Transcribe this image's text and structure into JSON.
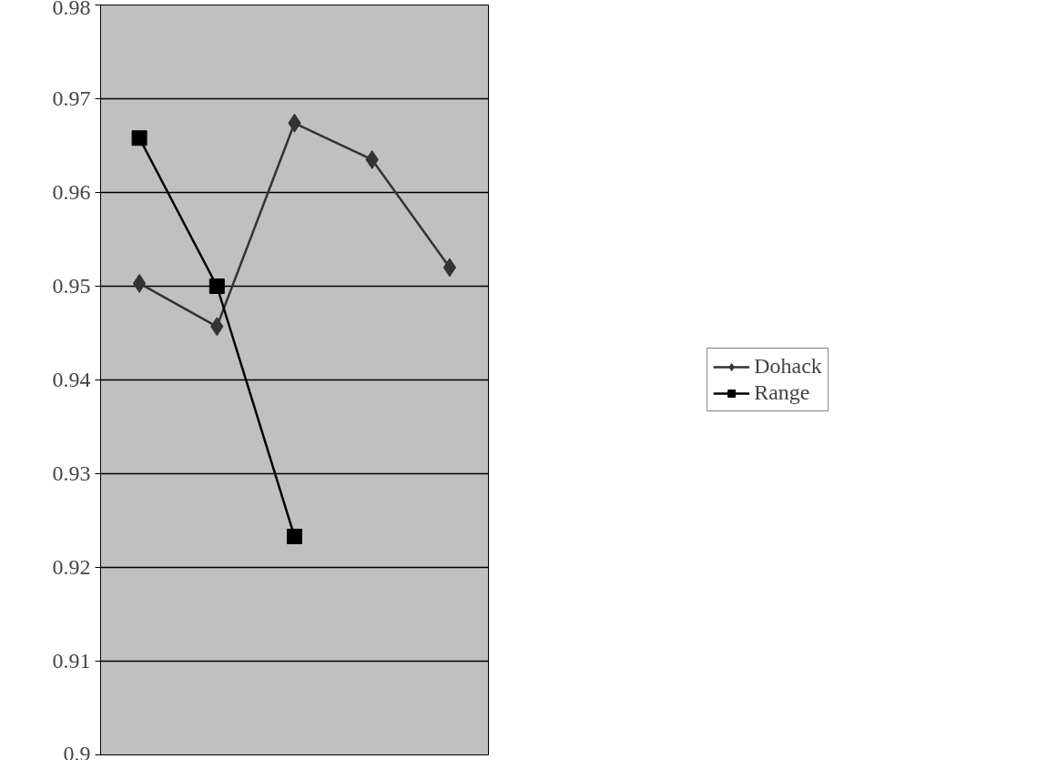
{
  "chart_data": {
    "type": "line",
    "categories": [
      null,
      null,
      null,
      null,
      null
    ],
    "series": [
      {
        "name": "Dohack",
        "color": "#333333",
        "marker": "diamond",
        "values": [
          0.9503,
          0.9457,
          0.9674,
          0.9635,
          0.952
        ]
      },
      {
        "name": "Range",
        "color": "#000000",
        "marker": "square",
        "values": [
          0.9658,
          0.95,
          0.9233,
          null,
          null
        ]
      }
    ],
    "ylim": [
      0.9,
      0.98
    ],
    "yticks": [
      0.9,
      0.91,
      0.92,
      0.93,
      0.94,
      0.95,
      0.96,
      0.97,
      0.98
    ],
    "grid": "y",
    "legend": "right",
    "tick_labels": "y"
  }
}
